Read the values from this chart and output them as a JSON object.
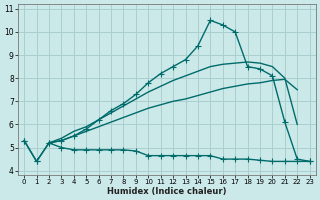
{
  "xlabel": "Humidex (Indice chaleur)",
  "bg_color": "#cce9e9",
  "grid_color": "#aacfcf",
  "line_color": "#006b6b",
  "xlim": [
    -0.5,
    23.5
  ],
  "ylim": [
    3.8,
    11.2
  ],
  "x_ticks": [
    0,
    1,
    2,
    3,
    4,
    5,
    6,
    7,
    8,
    9,
    10,
    11,
    12,
    13,
    14,
    15,
    16,
    17,
    18,
    19,
    20,
    21,
    22,
    23
  ],
  "y_ticks": [
    4,
    5,
    6,
    7,
    8,
    9,
    10,
    11
  ],
  "series": [
    {
      "x": [
        0,
        1,
        2,
        3,
        4,
        5,
        6,
        7,
        8,
        9,
        10,
        11,
        12,
        13,
        14,
        15,
        16,
        17,
        18,
        19,
        20,
        21,
        22,
        23
      ],
      "y": [
        5.3,
        4.4,
        5.2,
        5.0,
        4.9,
        4.9,
        4.9,
        4.9,
        4.9,
        4.85,
        4.65,
        4.65,
        4.65,
        4.65,
        4.65,
        4.65,
        4.5,
        4.5,
        4.5,
        4.45,
        4.4,
        4.4,
        4.4,
        4.4
      ],
      "marker": "+",
      "marker_size": 4,
      "linewidth": 1.0
    },
    {
      "x": [
        2,
        3,
        4,
        5,
        6,
        7,
        8,
        9,
        10,
        11,
        12,
        13,
        14,
        15,
        16,
        17,
        18,
        19,
        20,
        21,
        22
      ],
      "y": [
        5.2,
        5.3,
        5.5,
        5.7,
        5.9,
        6.1,
        6.3,
        6.5,
        6.7,
        6.85,
        7.0,
        7.1,
        7.25,
        7.4,
        7.55,
        7.65,
        7.75,
        7.8,
        7.9,
        7.95,
        7.5
      ],
      "marker": null,
      "marker_size": 0,
      "linewidth": 1.0
    },
    {
      "x": [
        2,
        3,
        4,
        5,
        6,
        7,
        8,
        9,
        10,
        11,
        12,
        13,
        14,
        15,
        16,
        17,
        18,
        19,
        20,
        21,
        22
      ],
      "y": [
        5.2,
        5.4,
        5.7,
        5.9,
        6.2,
        6.5,
        6.8,
        7.1,
        7.4,
        7.65,
        7.9,
        8.1,
        8.3,
        8.5,
        8.6,
        8.65,
        8.7,
        8.65,
        8.5,
        8.0,
        6.0
      ],
      "marker": null,
      "marker_size": 0,
      "linewidth": 1.0
    },
    {
      "x": [
        0,
        1,
        2,
        3,
        4,
        5,
        6,
        7,
        8,
        9,
        10,
        11,
        12,
        13,
        14,
        15,
        16,
        17,
        18,
        19,
        20,
        21,
        22,
        23
      ],
      "y": [
        5.3,
        4.4,
        5.2,
        5.3,
        5.5,
        5.8,
        6.2,
        6.6,
        6.9,
        7.3,
        7.8,
        8.2,
        8.5,
        8.8,
        9.4,
        10.5,
        10.3,
        10.0,
        8.5,
        8.4,
        8.1,
        6.1,
        4.5,
        4.4
      ],
      "marker": "+",
      "marker_size": 4,
      "linewidth": 1.0
    }
  ]
}
